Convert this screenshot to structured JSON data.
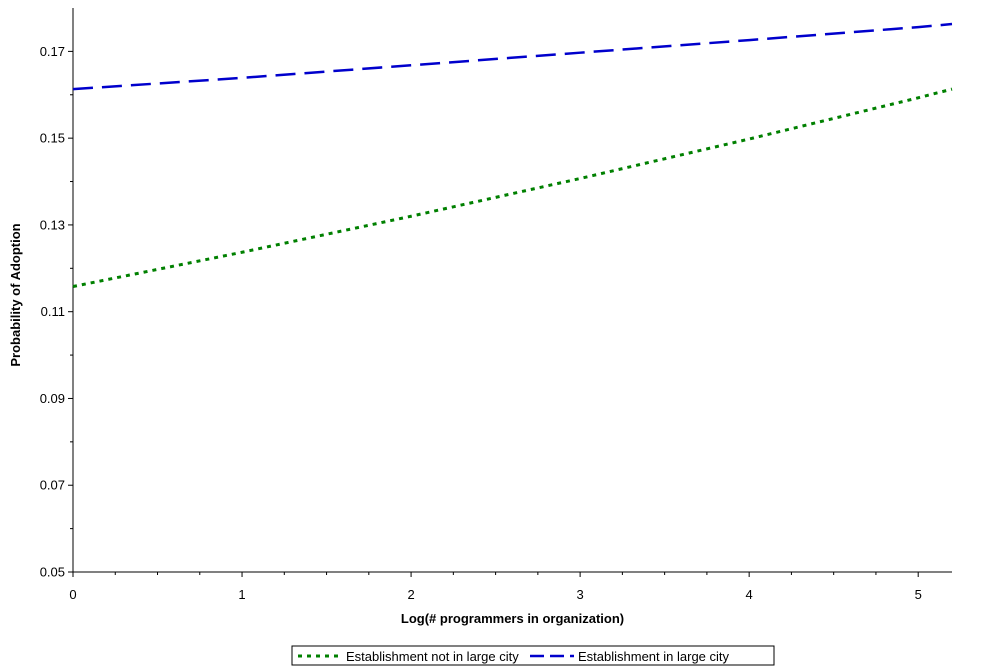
{
  "chart_data": {
    "type": "line",
    "title": "",
    "xlabel": "Log(# programmers in organization)",
    "ylabel": "Probability of Adoption",
    "xlim": [
      0,
      5.2
    ],
    "ylim": [
      0.05,
      0.18
    ],
    "x_ticks": [
      0,
      1,
      2,
      3,
      4,
      5
    ],
    "x_tick_labels": [
      "0",
      "1",
      "2",
      "3",
      "4",
      "5"
    ],
    "y_ticks": [
      0.05,
      0.07,
      0.09,
      0.11,
      0.13,
      0.15,
      0.17
    ],
    "y_tick_labels": [
      "0.05",
      "0.07",
      "0.09",
      "0.11",
      "0.13",
      "0.15",
      "0.17"
    ],
    "grid": false,
    "legend_position": "bottom",
    "series": [
      {
        "name": "Establishment not in large city",
        "color": "#008000",
        "style": "dotted",
        "x": [
          0,
          1,
          2,
          3,
          4,
          5,
          5.2
        ],
        "y": [
          0.1158,
          0.1237,
          0.132,
          0.1407,
          0.1498,
          0.1593,
          0.1613
        ]
      },
      {
        "name": "Establishment in large city",
        "color": "#0000cc",
        "style": "dashed",
        "x": [
          0,
          1,
          2,
          3,
          4,
          5,
          5.2
        ],
        "y": [
          0.1613,
          0.1639,
          0.1668,
          0.1697,
          0.1726,
          0.1756,
          0.1763
        ]
      }
    ]
  }
}
